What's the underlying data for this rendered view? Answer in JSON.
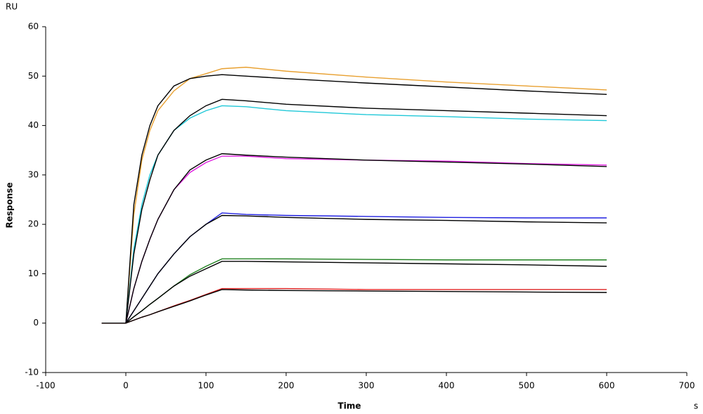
{
  "chart_data": {
    "type": "line",
    "y_unit": "RU",
    "ylabel": "Response",
    "xlabel": "Time",
    "x_unit": "s",
    "xlim": [
      -100,
      700
    ],
    "xticks": [
      -100,
      0,
      100,
      200,
      300,
      400,
      500,
      600,
      700
    ],
    "ylim": [
      -10,
      60
    ],
    "yticks": [
      -10,
      0,
      10,
      20,
      30,
      40,
      50,
      60
    ],
    "grid": false,
    "x": [
      -30,
      0,
      10,
      20,
      30,
      40,
      60,
      80,
      100,
      120,
      150,
      200,
      300,
      400,
      500,
      600
    ],
    "series": [
      {
        "color": "#e8a030",
        "values": [
          0,
          0,
          22,
          33,
          39,
          43,
          47,
          49.5,
          50.5,
          51.5,
          51.8,
          51,
          49.8,
          48.8,
          48,
          47.2
        ]
      },
      {
        "color": "#000000",
        "values": [
          0,
          0,
          24,
          34,
          40,
          44,
          48,
          49.5,
          50,
          50.3,
          50,
          49.5,
          48.6,
          47.8,
          47,
          46.3
        ]
      },
      {
        "color": "#20c8d8",
        "values": [
          0,
          0,
          15,
          24,
          30,
          34,
          39,
          41.5,
          43,
          44,
          43.8,
          43,
          42.2,
          41.8,
          41.3,
          41
        ]
      },
      {
        "color": "#000000",
        "values": [
          0,
          0,
          14,
          23,
          29,
          34,
          39,
          42,
          44,
          45.3,
          45,
          44.3,
          43.5,
          43,
          42.5,
          42
        ]
      },
      {
        "color": "#e020e0",
        "values": [
          0,
          0,
          7,
          12.5,
          17,
          21,
          27,
          30.5,
          32.5,
          33.8,
          33.8,
          33.3,
          33,
          32.8,
          32.3,
          32
        ]
      },
      {
        "color": "#000000",
        "values": [
          0,
          0,
          7,
          12.5,
          17,
          21,
          27,
          31,
          33,
          34.3,
          34,
          33.6,
          33,
          32.6,
          32.2,
          31.7
        ]
      },
      {
        "color": "#2020e0",
        "values": [
          0,
          0,
          2.5,
          5,
          7.5,
          10,
          14,
          17.5,
          20,
          22.3,
          22,
          21.8,
          21.6,
          21.4,
          21.3,
          21.3
        ]
      },
      {
        "color": "#000000",
        "values": [
          0,
          0,
          2.5,
          5,
          7.5,
          10,
          14,
          17.5,
          20,
          21.8,
          21.7,
          21.4,
          21,
          20.8,
          20.5,
          20.3
        ]
      },
      {
        "color": "#208020",
        "values": [
          0,
          0,
          1.3,
          2.5,
          3.8,
          5,
          7.5,
          9.8,
          11.5,
          13,
          13,
          13,
          12.9,
          12.8,
          12.8,
          12.8
        ]
      },
      {
        "color": "#000000",
        "values": [
          0,
          0,
          1.3,
          2.5,
          3.8,
          5,
          7.5,
          9.5,
          11,
          12.5,
          12.5,
          12.4,
          12.2,
          12,
          11.8,
          11.5
        ]
      },
      {
        "color": "#e02020",
        "values": [
          0,
          0,
          0.6,
          1.2,
          1.7,
          2.3,
          3.5,
          4.6,
          5.8,
          7,
          7,
          7,
          6.8,
          6.8,
          6.8,
          6.8
        ]
      },
      {
        "color": "#000000",
        "values": [
          0,
          0,
          0.6,
          1.2,
          1.7,
          2.3,
          3.4,
          4.5,
          5.7,
          6.8,
          6.7,
          6.6,
          6.5,
          6.4,
          6.3,
          6.2
        ]
      }
    ]
  }
}
